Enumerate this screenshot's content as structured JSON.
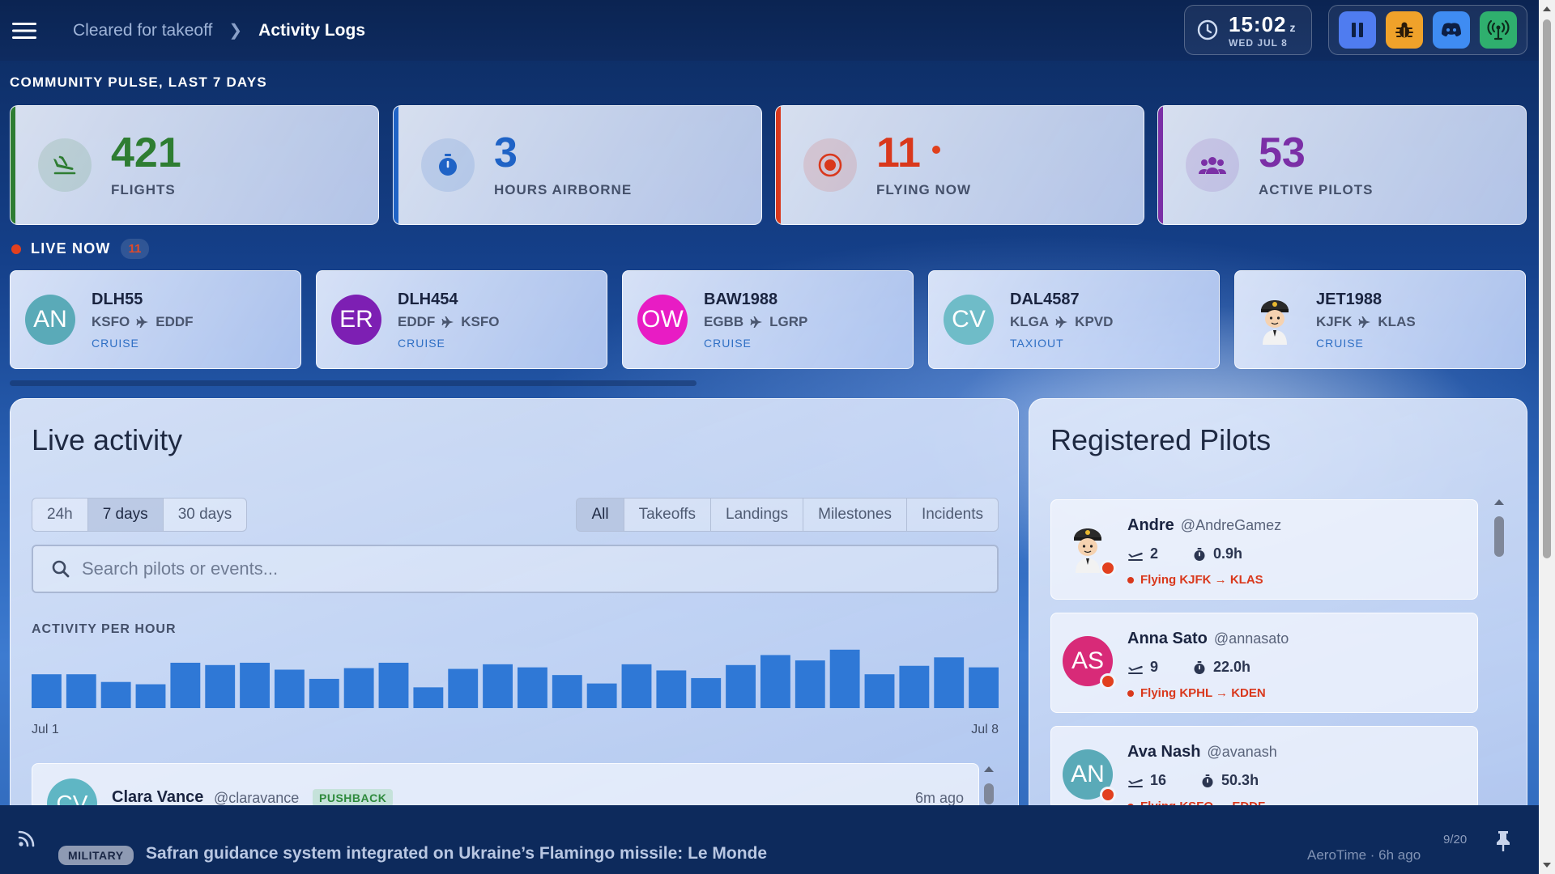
{
  "header": {
    "breadcrumb_parent": "Cleared for takeoff",
    "breadcrumb_current": "Activity Logs",
    "clock_time": "15:02",
    "clock_zone": "z",
    "clock_date": "WED JUL 8",
    "tools": [
      {
        "name": "pause",
        "color": "#4f7cf0"
      },
      {
        "name": "bug",
        "color": "#f0a22a"
      },
      {
        "name": "discord",
        "color": "#3f8cf2"
      },
      {
        "name": "broadcast",
        "color": "#2faf6e"
      }
    ]
  },
  "pulse": {
    "title": "COMMUNITY PULSE, LAST 7 DAYS",
    "stats": [
      {
        "value": "421",
        "label": "FLIGHTS",
        "color": "#2e7d32",
        "icon": "flight-land-icon"
      },
      {
        "value": "3",
        "label": "HOURS AIRBORNE",
        "color": "#1f63c6",
        "icon": "stopwatch-icon"
      },
      {
        "value": "11",
        "label": "FLYING NOW",
        "color": "#d9381c",
        "icon": "radio-target-icon"
      },
      {
        "value": "53",
        "label": "ACTIVE PILOTS",
        "color": "#7b2fa6",
        "icon": "group-icon"
      }
    ]
  },
  "live": {
    "label": "LIVE NOW",
    "count": "11",
    "flights": [
      {
        "initials": "AN",
        "avatar_color": "#5aaab8",
        "callsign": "DLH55",
        "from": "KSFO",
        "to": "EDDF",
        "phase": "CRUISE"
      },
      {
        "initials": "ER",
        "avatar_color": "#7d1fb3",
        "callsign": "DLH454",
        "from": "EDDF",
        "to": "KSFO",
        "phase": "CRUISE"
      },
      {
        "initials": "OW",
        "avatar_color": "#e81cc4",
        "callsign": "BAW1988",
        "from": "EGBB",
        "to": "LGRP",
        "phase": "CRUISE"
      },
      {
        "initials": "CV",
        "avatar_color": "#6fbcc8",
        "callsign": "DAL4587",
        "from": "KLGA",
        "to": "KPVD",
        "phase": "TAXIOUT"
      },
      {
        "initials": "",
        "avatar_color": "pilot",
        "callsign": "JET1988",
        "from": "KJFK",
        "to": "KLAS",
        "phase": "CRUISE"
      }
    ]
  },
  "activity": {
    "title": "Live activity",
    "ranges": [
      "24h",
      "7 days",
      "30 days"
    ],
    "active_range": "7 days",
    "filters": [
      "All",
      "Takeoffs",
      "Landings",
      "Milestones",
      "Incidents"
    ],
    "active_filter": "All",
    "search_placeholder": "Search pilots or events...",
    "chart_title": "ACTIVITY PER HOUR",
    "axis_start": "Jul 1",
    "axis_end": "Jul 8",
    "feed": [
      {
        "initials": "CV",
        "name": "Clara Vance",
        "handle": "@claravance",
        "badge": "PUSHBACK",
        "time": "6m ago"
      }
    ]
  },
  "chart_data": {
    "type": "bar",
    "title": "ACTIVITY PER HOUR",
    "xlabel": "",
    "ylabel": "",
    "x_start": "Jul 1",
    "x_end": "Jul 8",
    "values": [
      44,
      44,
      34,
      31,
      59,
      56,
      59,
      50,
      38,
      52,
      59,
      27,
      51,
      57,
      53,
      43,
      32,
      57,
      49,
      39,
      56,
      69,
      62,
      76,
      44,
      55,
      66,
      53
    ],
    "ylim": [
      0,
      80
    ],
    "color": "#2f78d6"
  },
  "pilots": {
    "title": "Registered Pilots",
    "items": [
      {
        "initials": "",
        "avatar": "pilot",
        "avatar_color": "#f0f4fc",
        "name": "Andre",
        "handle": "@AndreGamez",
        "flights": "2",
        "hours": "0.9h",
        "flying": "Flying KJFK → KLAS"
      },
      {
        "initials": "AS",
        "avatar": "initials",
        "avatar_color": "#d82a78",
        "name": "Anna Sato",
        "handle": "@annasato",
        "flights": "9",
        "hours": "22.0h",
        "flying": "Flying KPHL → KDEN"
      },
      {
        "initials": "AN",
        "avatar": "initials",
        "avatar_color": "#5aaab8",
        "name": "Ava Nash",
        "handle": "@avanash",
        "flights": "16",
        "hours": "50.3h",
        "flying": "Flying KSFO → EDDF"
      }
    ]
  },
  "ticker": {
    "badge": "MILITARY",
    "headline": "Safran guidance system integrated on Ukraine’s Flamingo missile: Le Monde",
    "source": "AeroTime · 6h ago",
    "count": "9/20"
  }
}
